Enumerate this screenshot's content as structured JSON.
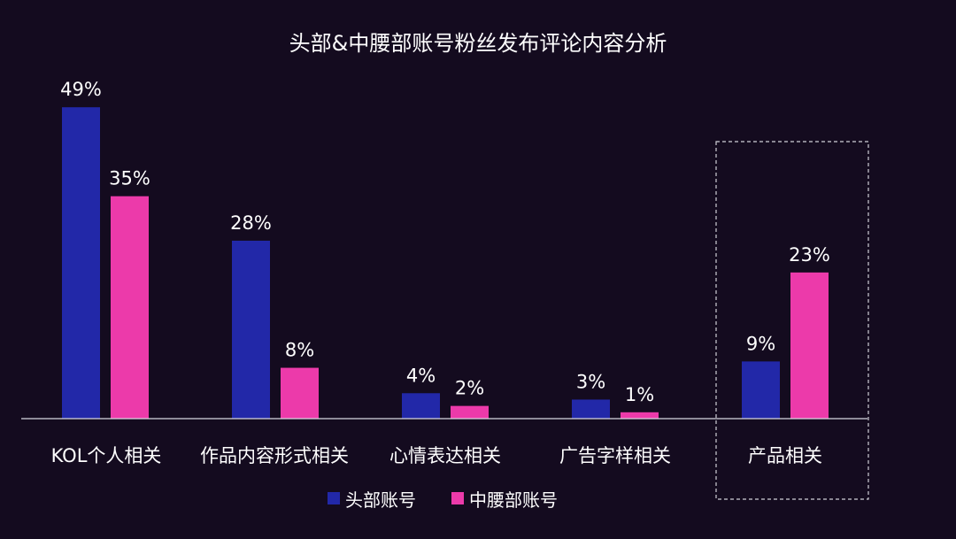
{
  "chart_data": {
    "type": "bar",
    "title": "头部&中腰部账号粉丝发布评论内容分析",
    "categories": [
      "KOL个人相关",
      "作品内容形式相关",
      "心情表达相关",
      "广告字样相关",
      "产品相关"
    ],
    "series": [
      {
        "name": "头部账号",
        "color": "#2228a8",
        "values": [
          49,
          28,
          4,
          3,
          9
        ],
        "labels": [
          "49%",
          "28%",
          "4%",
          "3%",
          "9%"
        ]
      },
      {
        "name": "中腰部账号",
        "color": "#ec3aaa",
        "values": [
          35,
          8,
          2,
          1,
          23
        ],
        "labels": [
          "35%",
          "8%",
          "2%",
          "1%",
          "23%"
        ]
      }
    ],
    "value_unit": "%",
    "ylim": [
      0,
      50
    ],
    "grid": false,
    "legend": "bottom-center",
    "highlighted_category": "产品相关"
  }
}
